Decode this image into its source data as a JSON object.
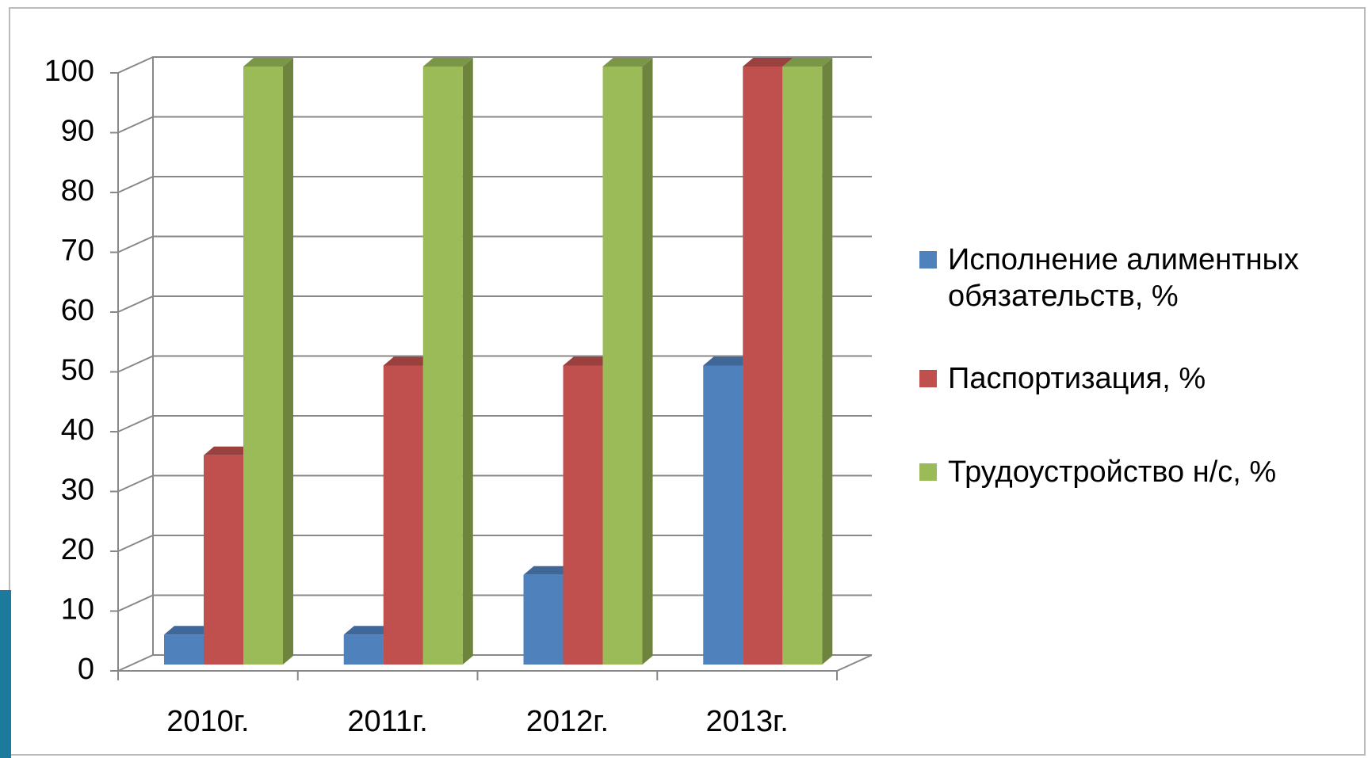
{
  "chart_data": {
    "type": "bar3d",
    "categories": [
      "2010г.",
      "2011г.",
      "2012г.",
      "2013г."
    ],
    "series": [
      {
        "name": "Исполнение алиментных обязательств, %",
        "color": "#4f81bd",
        "values": [
          5,
          5,
          15,
          50
        ]
      },
      {
        "name": "Паспортизация, %",
        "color": "#c0504d",
        "values": [
          35,
          50,
          50,
          100
        ]
      },
      {
        "name": "Трудоустройство н/с, %",
        "color": "#9bbb59",
        "values": [
          100,
          100,
          100,
          100
        ]
      }
    ],
    "ylim": [
      0,
      100
    ],
    "yticks": [
      0,
      10,
      20,
      30,
      40,
      50,
      60,
      70,
      80,
      90,
      100
    ],
    "grid": true,
    "legend": "right"
  }
}
